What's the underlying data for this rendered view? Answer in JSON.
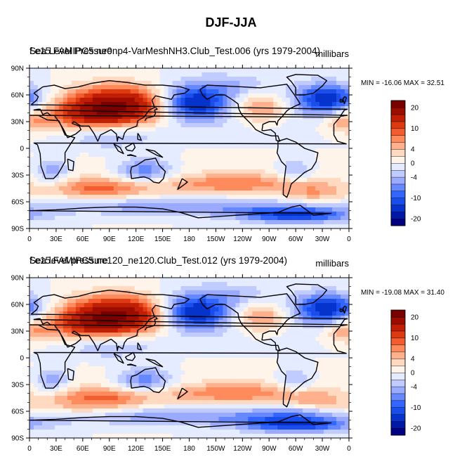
{
  "figure": {
    "title": "DJF-JJA"
  },
  "chart_data": [
    {
      "type": "heatmap",
      "left_title": "Sea Level Pressure",
      "title": "f.e15.FAMIPC5.ne0np4-VarMeshNH3.Club_Test.006 (yrs 1979-2004)",
      "units": "millibars",
      "stats_label": "MIN = -16.06 MAX =  32.51",
      "min": -16.06,
      "max": 32.51,
      "x_ticks": [
        "0",
        "30E",
        "60E",
        "90E",
        "120E",
        "150E",
        "180",
        "150W",
        "120W",
        "90W",
        "60W",
        "30W",
        "0"
      ],
      "y_ticks": [
        "90N",
        "60N",
        "30N",
        "0",
        "30S",
        "60S",
        "90S"
      ],
      "xlim": [
        0,
        360
      ],
      "ylim": [
        -90,
        90
      ],
      "colorbar_labels": [
        "20",
        "10",
        "4",
        "0",
        "-4",
        "-10",
        "-20"
      ]
    },
    {
      "type": "heatmap",
      "left_title": "Sea level pressure",
      "title": "f.e15.FAMIPC5.ne120_ne120.Club_Test.012 (yrs 1979-2004)",
      "units": "millibars",
      "stats_label": "MIN = -19.08 MAX =  31.40",
      "min": -19.08,
      "max": 31.4,
      "x_ticks": [
        "0",
        "30E",
        "60E",
        "90E",
        "120E",
        "150E",
        "180",
        "150W",
        "120W",
        "90W",
        "60W",
        "30W",
        "0"
      ],
      "y_ticks": [
        "90N",
        "60N",
        "30N",
        "0",
        "30S",
        "60S",
        "90S"
      ],
      "xlim": [
        0,
        360
      ],
      "ylim": [
        -90,
        90
      ],
      "colorbar_labels": [
        "20",
        "10",
        "4",
        "0",
        "-4",
        "-10",
        "-20"
      ]
    }
  ],
  "colors": {
    "scale": [
      "#000080",
      "#0019a6",
      "#0533cc",
      "#1a4dea",
      "#3366ff",
      "#6688ff",
      "#99aaff",
      "#c0ccff",
      "#e6ecff",
      "#fff4ea",
      "#ffd9c0",
      "#ffb08c",
      "#ff8a5c",
      "#f25c2e",
      "#dd3a12",
      "#c01e05",
      "#9c0d00",
      "#7a0000"
    ]
  }
}
